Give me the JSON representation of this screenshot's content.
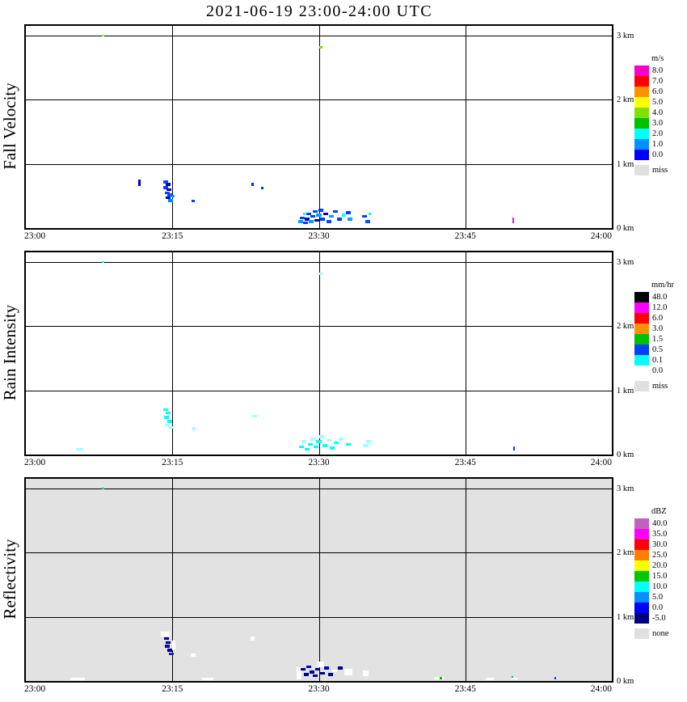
{
  "title": "2021-06-19  23:00-24:00 UTC",
  "axes": {
    "x_ticks": [
      {
        "t": 0,
        "label": "23:00"
      },
      {
        "t": 15,
        "label": "23:15"
      },
      {
        "t": 30,
        "label": "23:30"
      },
      {
        "t": 45,
        "label": "23:45"
      },
      {
        "t": 60,
        "label": "24:00"
      }
    ],
    "y_ticks": [
      {
        "km": 3,
        "label": "3 km"
      },
      {
        "km": 2,
        "label": "2 km"
      },
      {
        "km": 1,
        "label": "1 km"
      },
      {
        "km": 0,
        "label": "0 km"
      }
    ],
    "t_range": [
      0,
      60
    ],
    "alt_max_km": 3.15
  },
  "chart_data": [
    {
      "type": "heatmap",
      "ylabel": "Fall Velocity",
      "units": "m/s",
      "background": "#ffffff",
      "legend": [
        {
          "label": "8.0",
          "color": "#ff00c8"
        },
        {
          "label": "7.0",
          "color": "#ff0000"
        },
        {
          "label": "6.0",
          "color": "#ff9000"
        },
        {
          "label": "5.0",
          "color": "#ffff00"
        },
        {
          "label": "4.0",
          "color": "#80e000"
        },
        {
          "label": "3.0",
          "color": "#00c000"
        },
        {
          "label": "2.0",
          "color": "#00ffff"
        },
        {
          "label": "1.0",
          "color": "#0090ff"
        },
        {
          "label": "0.0",
          "color": "#0000ff"
        }
      ],
      "missing": {
        "label": "miss",
        "color": "#e0e0e0"
      },
      "points": [
        {
          "t": 7.9,
          "km": 3.0,
          "c": "#80ff00",
          "w": 0.3,
          "h": 0.03
        },
        {
          "t": 30.2,
          "km": 2.82,
          "c": "#80e000",
          "w": 0.3,
          "h": 0.04
        },
        {
          "t": 11.6,
          "km": 0.7,
          "c": "#0000d0",
          "w": 0.25,
          "h": 0.1
        },
        {
          "t": 14.35,
          "km": 0.72,
          "c": "#0050ff"
        },
        {
          "t": 14.6,
          "km": 0.68,
          "c": "#0000c0"
        },
        {
          "t": 14.35,
          "km": 0.63,
          "c": "#0040ff"
        },
        {
          "t": 14.65,
          "km": 0.6,
          "c": "#0000c0"
        },
        {
          "t": 14.45,
          "km": 0.55,
          "c": "#0040ff"
        },
        {
          "t": 14.75,
          "km": 0.52,
          "c": "#0050ff"
        },
        {
          "t": 14.55,
          "km": 0.47,
          "c": "#0000c0"
        },
        {
          "t": 14.85,
          "km": 0.43,
          "c": "#0080ff"
        },
        {
          "t": 15.05,
          "km": 0.5,
          "c": "#00a0ff",
          "w": 0.3
        },
        {
          "t": 17.15,
          "km": 0.42,
          "c": "#0040ff",
          "w": 0.3,
          "h": 0.03
        },
        {
          "t": 23.2,
          "km": 0.68,
          "c": "#0030ff",
          "w": 0.25,
          "h": 0.06
        },
        {
          "t": 24.2,
          "km": 0.62,
          "c": "#0030ff",
          "w": 0.25,
          "h": 0.04
        },
        {
          "t": 28.1,
          "km": 0.1,
          "c": "#00a0ff"
        },
        {
          "t": 28.3,
          "km": 0.16,
          "c": "#0040ff"
        },
        {
          "t": 28.5,
          "km": 0.22,
          "c": "#00ffff",
          "w": 0.3
        },
        {
          "t": 28.6,
          "km": 0.08,
          "c": "#0040ff"
        },
        {
          "t": 28.8,
          "km": 0.14,
          "c": "#0000c0"
        },
        {
          "t": 29.0,
          "km": 0.22,
          "c": "#0040ff"
        },
        {
          "t": 29.2,
          "km": 0.1,
          "c": "#00a0ff"
        },
        {
          "t": 29.4,
          "km": 0.18,
          "c": "#0040ff"
        },
        {
          "t": 29.6,
          "km": 0.26,
          "c": "#0040ff"
        },
        {
          "t": 29.8,
          "km": 0.12,
          "c": "#0000c0"
        },
        {
          "t": 30.0,
          "km": 0.2,
          "c": "#00a0ff"
        },
        {
          "t": 30.2,
          "km": 0.28,
          "c": "#0040ff"
        },
        {
          "t": 30.4,
          "km": 0.14,
          "c": "#0040ff"
        },
        {
          "t": 30.7,
          "km": 0.22,
          "c": "#0000c0"
        },
        {
          "t": 31.0,
          "km": 0.1,
          "c": "#0040ff"
        },
        {
          "t": 31.3,
          "km": 0.18,
          "c": "#00a0ff"
        },
        {
          "t": 31.7,
          "km": 0.26,
          "c": "#0040ff"
        },
        {
          "t": 32.1,
          "km": 0.14,
          "c": "#0040ff"
        },
        {
          "t": 32.5,
          "km": 0.2,
          "c": "#00ffff",
          "w": 0.3
        },
        {
          "t": 33.0,
          "km": 0.24,
          "c": "#0040ff"
        },
        {
          "t": 33.2,
          "km": 0.14,
          "c": "#00a0ff"
        },
        {
          "t": 34.7,
          "km": 0.18,
          "c": "#0040ff"
        },
        {
          "t": 35.0,
          "km": 0.1,
          "c": "#0050ff"
        },
        {
          "t": 35.2,
          "km": 0.22,
          "c": "#00ffff",
          "w": 0.25
        },
        {
          "t": 49.9,
          "km": 0.12,
          "c": "#ff00ff",
          "w": 0.2,
          "h": 0.08
        }
      ]
    },
    {
      "type": "heatmap",
      "ylabel": "Rain Intensity",
      "units": "mm/hr",
      "background": "#ffffff",
      "legend": [
        {
          "label": "48.0",
          "color": "#000000"
        },
        {
          "label": "12.0",
          "color": "#ff00ff"
        },
        {
          "label": "6.0",
          "color": "#ff0000"
        },
        {
          "label": "3.0",
          "color": "#ff9000"
        },
        {
          "label": "1.5",
          "color": "#00c000"
        },
        {
          "label": "0.5",
          "color": "#0040ff"
        },
        {
          "label": "0.1",
          "color": "#00ffff"
        },
        {
          "label": "0.0",
          "color": "#ffffff"
        }
      ],
      "missing": {
        "label": "miss",
        "color": "#e0e0e0"
      },
      "points": [
        {
          "t": 7.9,
          "km": 3.0,
          "c": "#00ffff",
          "w": 0.3,
          "h": 0.03
        },
        {
          "t": 30.2,
          "km": 2.82,
          "c": "#a0ffff",
          "w": 0.3,
          "h": 0.04
        },
        {
          "t": 5.5,
          "km": 0.08,
          "c": "#a0ffff",
          "w": 0.8,
          "h": 0.03
        },
        {
          "t": 14.35,
          "km": 0.7,
          "c": "#00ffff"
        },
        {
          "t": 14.6,
          "km": 0.65,
          "c": "#00ffff"
        },
        {
          "t": 14.4,
          "km": 0.58,
          "c": "#00ffff"
        },
        {
          "t": 14.7,
          "km": 0.52,
          "c": "#00ffff"
        },
        {
          "t": 14.5,
          "km": 0.46,
          "c": "#a0ffff"
        },
        {
          "t": 14.8,
          "km": 0.42,
          "c": "#a0ffff"
        },
        {
          "t": 17.2,
          "km": 0.4,
          "c": "#a0ffff",
          "w": 0.3
        },
        {
          "t": 23.4,
          "km": 0.6,
          "c": "#a0ffff",
          "w": 0.5,
          "h": 0.03
        },
        {
          "t": 28.2,
          "km": 0.12,
          "c": "#00ffff"
        },
        {
          "t": 28.5,
          "km": 0.2,
          "c": "#a0ffff"
        },
        {
          "t": 28.8,
          "km": 0.08,
          "c": "#00ffff"
        },
        {
          "t": 29.1,
          "km": 0.16,
          "c": "#00ffff"
        },
        {
          "t": 29.4,
          "km": 0.24,
          "c": "#a0ffff"
        },
        {
          "t": 29.7,
          "km": 0.12,
          "c": "#00ffff"
        },
        {
          "t": 30.0,
          "km": 0.2,
          "c": "#00ffff"
        },
        {
          "t": 30.3,
          "km": 0.28,
          "c": "#a0ffff"
        },
        {
          "t": 30.6,
          "km": 0.14,
          "c": "#00ffff"
        },
        {
          "t": 31.0,
          "km": 0.22,
          "c": "#a0ffff"
        },
        {
          "t": 31.4,
          "km": 0.1,
          "c": "#00ffff"
        },
        {
          "t": 31.8,
          "km": 0.18,
          "c": "#00ffff"
        },
        {
          "t": 32.3,
          "km": 0.24,
          "c": "#a0ffff"
        },
        {
          "t": 33.0,
          "km": 0.16,
          "c": "#00ffff"
        },
        {
          "t": 34.8,
          "km": 0.14,
          "c": "#a0ffff"
        },
        {
          "t": 35.1,
          "km": 0.2,
          "c": "#a0ffff"
        },
        {
          "t": 50.0,
          "km": 0.09,
          "c": "#0040ff",
          "w": 0.2,
          "h": 0.06
        }
      ]
    },
    {
      "type": "heatmap",
      "ylabel": "Reflectivity",
      "units": "dBZ",
      "background": "#e2e2e2",
      "legend": [
        {
          "label": "40.0",
          "color": "#c060c0"
        },
        {
          "label": "35.0",
          "color": "#ff00ff"
        },
        {
          "label": "30.0",
          "color": "#ff0000"
        },
        {
          "label": "25.0",
          "color": "#ff8000"
        },
        {
          "label": "20.0",
          "color": "#ffff00"
        },
        {
          "label": "15.0",
          "color": "#00c800"
        },
        {
          "label": "10.0",
          "color": "#00ffff"
        },
        {
          "label": "5.0",
          "color": "#0090ff"
        },
        {
          "label": "0.0",
          "color": "#0000ff"
        },
        {
          "label": "-5.0",
          "color": "#000080"
        }
      ],
      "missing": {
        "label": "none",
        "color": "#e0e0e0"
      },
      "points": [
        {
          "t": 7.9,
          "km": 3.0,
          "c": "#00d0d0",
          "w": 0.3,
          "h": 0.03
        },
        {
          "t": 14.3,
          "km": 0.73,
          "c": "#ffffff",
          "w": 0.9,
          "h": 0.08
        },
        {
          "t": 14.4,
          "km": 0.66,
          "c": "#000090"
        },
        {
          "t": 14.6,
          "km": 0.6,
          "c": "#000090"
        },
        {
          "t": 14.45,
          "km": 0.54,
          "c": "#0000c0"
        },
        {
          "t": 14.7,
          "km": 0.48,
          "c": "#000090"
        },
        {
          "t": 14.9,
          "km": 0.42,
          "c": "#2020c0"
        },
        {
          "t": 15.15,
          "km": 0.55,
          "c": "#ffffff",
          "w": 0.3,
          "h": 0.15
        },
        {
          "t": 17.1,
          "km": 0.4,
          "c": "#ffffff",
          "w": 0.5,
          "h": 0.05
        },
        {
          "t": 5.3,
          "km": 0.03,
          "c": "#ffffff",
          "w": 1.5,
          "h": 0.04
        },
        {
          "t": 18.6,
          "km": 0.03,
          "c": "#ffffff",
          "w": 1.2,
          "h": 0.04
        },
        {
          "t": 23.2,
          "km": 0.66,
          "c": "#ffffff",
          "w": 0.4,
          "h": 0.06
        },
        {
          "t": 28.0,
          "km": 0.12,
          "c": "#ffffff",
          "w": 0.5,
          "h": 0.2
        },
        {
          "t": 28.4,
          "km": 0.18,
          "c": "#000090"
        },
        {
          "t": 28.7,
          "km": 0.1,
          "c": "#000090"
        },
        {
          "t": 29.0,
          "km": 0.22,
          "c": "#0000c0"
        },
        {
          "t": 29.3,
          "km": 0.14,
          "c": "#000090"
        },
        {
          "t": 29.6,
          "km": 0.08,
          "c": "#000090"
        },
        {
          "t": 29.9,
          "km": 0.18,
          "c": "#000090"
        },
        {
          "t": 30.2,
          "km": 0.26,
          "c": "#ffffff",
          "w": 0.6,
          "h": 0.08
        },
        {
          "t": 30.4,
          "km": 0.12,
          "c": "#000090"
        },
        {
          "t": 30.8,
          "km": 0.2,
          "c": "#0000c0"
        },
        {
          "t": 31.2,
          "km": 0.1,
          "c": "#000090"
        },
        {
          "t": 31.6,
          "km": 0.16,
          "c": "#ffffff",
          "w": 0.5
        },
        {
          "t": 32.2,
          "km": 0.2,
          "c": "#000090"
        },
        {
          "t": 33.0,
          "km": 0.14,
          "c": "#ffffff",
          "w": 0.8,
          "h": 0.1
        },
        {
          "t": 34.8,
          "km": 0.12,
          "c": "#ffffff",
          "w": 0.6,
          "h": 0.08
        },
        {
          "t": 42.3,
          "km": 0.04,
          "c": "#ffffff",
          "w": 1.0,
          "h": 0.04
        },
        {
          "t": 42.5,
          "km": 0.04,
          "c": "#00c000",
          "w": 0.2,
          "h": 0.04
        },
        {
          "t": 47.5,
          "km": 0.03,
          "c": "#ffffff",
          "w": 0.8,
          "h": 0.03
        },
        {
          "t": 49.8,
          "km": 0.05,
          "c": "#00b0b0",
          "w": 0.2,
          "h": 0.05
        },
        {
          "t": 50.0,
          "km": 0.04,
          "c": "#ffffff",
          "w": 0.6,
          "h": 0.03
        },
        {
          "t": 54.2,
          "km": 0.04,
          "c": "#0040ff",
          "w": 0.2,
          "h": 0.04
        }
      ]
    }
  ]
}
